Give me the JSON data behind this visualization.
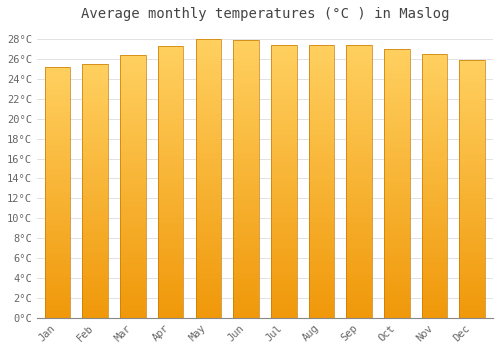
{
  "title": "Average monthly temperatures (°C ) in Maslog",
  "months": [
    "Jan",
    "Feb",
    "Mar",
    "Apr",
    "May",
    "Jun",
    "Jul",
    "Aug",
    "Sep",
    "Oct",
    "Nov",
    "Dec"
  ],
  "values": [
    25.2,
    25.5,
    26.4,
    27.3,
    28.0,
    27.9,
    27.4,
    27.4,
    27.4,
    27.0,
    26.5,
    25.9
  ],
  "bar_color_light": "#FFD060",
  "bar_color_dark": "#F0980A",
  "bar_edge_color": "#C87800",
  "ylim": [
    0,
    29
  ],
  "ytick_values": [
    0,
    2,
    4,
    6,
    8,
    10,
    12,
    14,
    16,
    18,
    20,
    22,
    24,
    26,
    28
  ],
  "background_color": "#FFFFFF",
  "plot_bg_color": "#FFFFFF",
  "grid_color": "#DDDDDD",
  "title_fontsize": 10,
  "tick_fontsize": 7.5,
  "font_family": "monospace",
  "title_color": "#444444",
  "tick_color": "#666666"
}
